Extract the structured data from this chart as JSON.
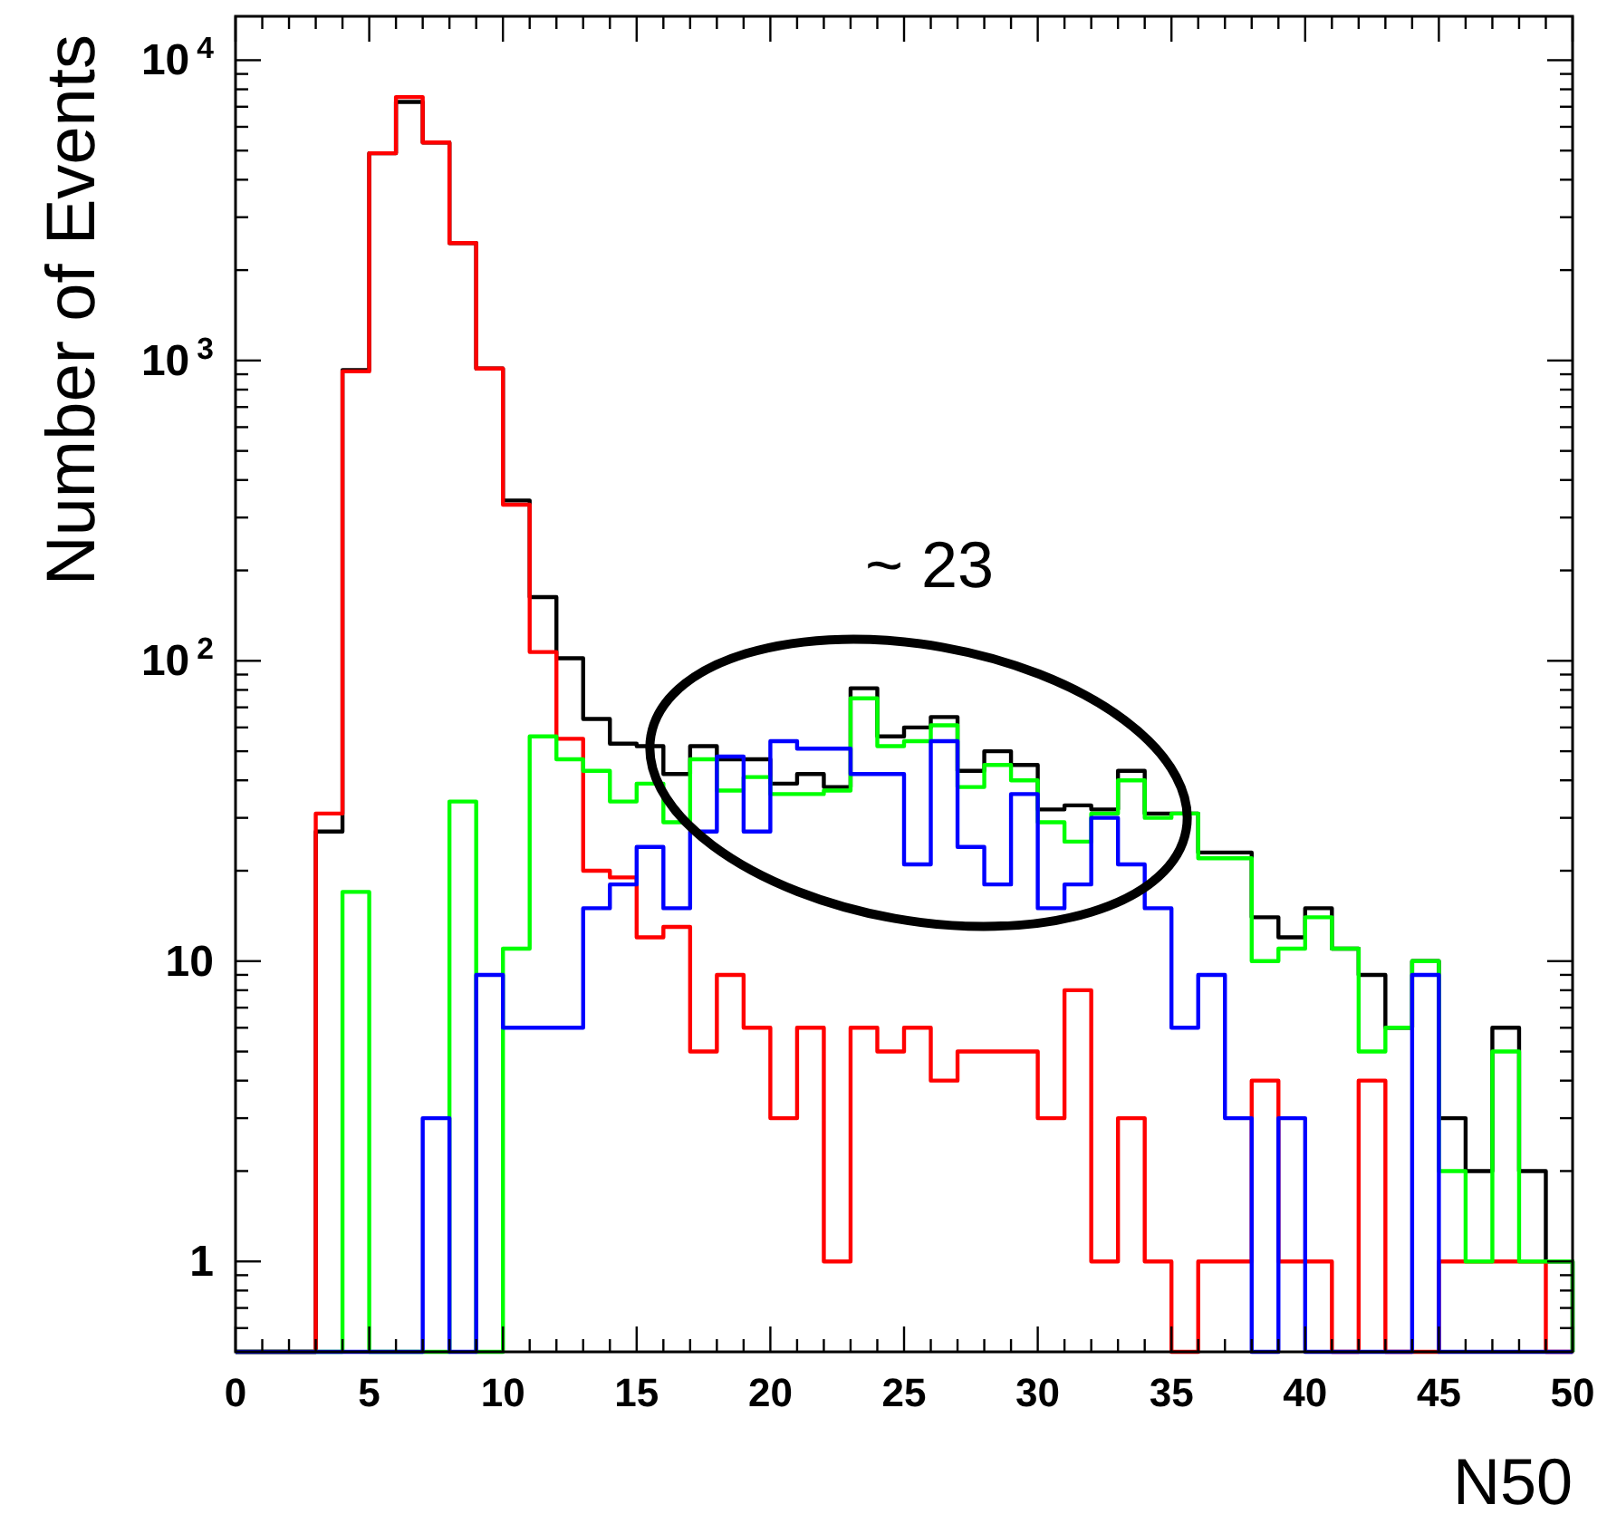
{
  "chart_data": {
    "type": "histogram",
    "xlabel": "N50",
    "ylabel": "Number of Events",
    "annotations": [
      "~ 23"
    ],
    "bins": [
      0,
      1,
      2,
      3,
      4,
      5,
      6,
      7,
      8,
      9,
      10,
      11,
      12,
      13,
      14,
      15,
      16,
      17,
      18,
      19,
      20,
      21,
      22,
      23,
      24,
      25,
      26,
      27,
      28,
      29,
      30,
      31,
      32,
      33,
      34,
      35,
      36,
      37,
      38,
      39,
      40,
      41,
      42,
      43,
      44,
      45,
      46,
      47,
      48,
      49,
      50
    ],
    "series": [
      {
        "color": "#000000",
        "values": [
          null,
          null,
          null,
          27,
          930,
          4900,
          7260,
          5320,
          2460,
          940,
          342,
          163,
          102,
          64,
          53,
          52,
          42,
          52,
          47,
          47,
          39,
          42,
          38,
          81,
          56,
          60,
          65,
          43,
          50,
          45,
          32,
          33,
          32,
          43,
          31,
          31,
          23,
          23,
          14,
          12,
          15,
          11,
          9,
          6,
          10,
          3,
          2,
          6,
          2,
          1
        ]
      },
      {
        "color": "#ff0000",
        "values": [
          null,
          null,
          null,
          31,
          920,
          4900,
          7540,
          5320,
          2460,
          940,
          331,
          107,
          55,
          20,
          19,
          12,
          13,
          5,
          9,
          6,
          3,
          6,
          1,
          6,
          5,
          6,
          4,
          5,
          5,
          5,
          3,
          8,
          1,
          3,
          1,
          null,
          1,
          1,
          4,
          1,
          1,
          null,
          4,
          null,
          null,
          1,
          1,
          1,
          1,
          null
        ]
      },
      {
        "color": "#00ff00",
        "values": [
          null,
          null,
          null,
          null,
          17,
          null,
          null,
          null,
          34,
          null,
          11,
          56,
          47,
          43,
          34,
          39,
          29,
          47,
          37,
          41,
          36,
          36,
          37,
          75,
          52,
          54,
          61,
          38,
          45,
          40,
          29,
          25,
          31,
          40,
          30,
          31,
          22,
          22,
          10,
          11,
          14,
          11,
          5,
          6,
          10,
          2,
          1,
          5,
          1,
          1
        ]
      },
      {
        "color": "#0000ff",
        "values": [
          null,
          null,
          null,
          null,
          null,
          null,
          null,
          3,
          null,
          9,
          6,
          6,
          6,
          15,
          18,
          24,
          15,
          27,
          48,
          27,
          54,
          51,
          51,
          42,
          42,
          21,
          54,
          24,
          18,
          36,
          15,
          18,
          30,
          21,
          15,
          6,
          9,
          3,
          null,
          3,
          null,
          null,
          null,
          null,
          9,
          null,
          null,
          null,
          null,
          null
        ]
      }
    ],
    "log": "y",
    "xlim": [
      0,
      50
    ],
    "ylim": [
      0.5,
      14000
    ],
    "xticks": [
      0,
      {
        "value": 1,
        "label": null
      },
      {
        "value": 2,
        "label": null
      },
      {
        "value": 3,
        "label": null
      },
      {
        "value": 4,
        "label": null
      },
      5,
      {
        "value": 6,
        "label": null
      },
      {
        "value": 7,
        "label": null
      },
      {
        "value": 8,
        "label": null
      },
      {
        "value": 9,
        "label": null
      },
      10,
      {
        "value": 11,
        "label": null
      },
      {
        "value": 12,
        "label": null
      },
      {
        "value": 13,
        "label": null
      },
      {
        "value": 14,
        "label": null
      },
      15,
      {
        "value": 16,
        "label": null
      },
      {
        "value": 17,
        "label": null
      },
      {
        "value": 18,
        "label": null
      },
      {
        "value": 19,
        "label": null
      },
      20,
      {
        "value": 21,
        "label": null
      },
      {
        "value": 22,
        "label": null
      },
      {
        "value": 23,
        "label": null
      },
      {
        "value": 24,
        "label": null
      },
      25,
      {
        "value": 26,
        "label": null
      },
      {
        "value": 27,
        "label": null
      },
      {
        "value": 28,
        "label": null
      },
      {
        "value": 29,
        "label": null
      },
      30,
      {
        "value": 31,
        "label": null
      },
      {
        "value": 32,
        "label": null
      },
      {
        "value": 33,
        "label": null
      },
      {
        "value": 34,
        "label": null
      },
      35,
      {
        "value": 36,
        "label": null
      },
      {
        "value": 37,
        "label": null
      },
      {
        "value": 38,
        "label": null
      },
      {
        "value": 39,
        "label": null
      },
      40,
      {
        "value": 41,
        "label": null
      },
      {
        "value": 42,
        "label": null
      },
      {
        "value": 43,
        "label": null
      },
      {
        "value": 44,
        "label": null
      },
      45,
      {
        "value": 46,
        "label": null
      },
      {
        "value": 47,
        "label": null
      },
      {
        "value": 48,
        "label": null
      },
      {
        "value": 49,
        "label": null
      },
      50
    ],
    "yticks": [
      {
        "value": 0.6,
        "label": null
      },
      {
        "value": 0.7,
        "label": null
      },
      {
        "value": 0.8,
        "label": null
      },
      {
        "value": 0.9,
        "label": null
      },
      1,
      {
        "value": 2,
        "label": null
      },
      {
        "value": 3,
        "label": null
      },
      {
        "value": 4,
        "label": null
      },
      {
        "value": 5,
        "label": null
      },
      {
        "value": 6,
        "label": null
      },
      {
        "value": 7,
        "label": null
      },
      {
        "value": 8,
        "label": null
      },
      {
        "value": 9,
        "label": null
      },
      10,
      {
        "value": 20,
        "label": null
      },
      {
        "value": 30,
        "label": null
      },
      {
        "value": 40,
        "label": null
      },
      {
        "value": 50,
        "label": null
      },
      {
        "value": 60,
        "label": null
      },
      {
        "value": 70,
        "label": null
      },
      {
        "value": 80,
        "label": null
      },
      {
        "value": 90,
        "label": null
      },
      {
        "value": 100,
        "label": "10$^{2}$"
      },
      {
        "value": 200,
        "label": null
      },
      {
        "value": 300,
        "label": null
      },
      {
        "value": 400,
        "label": null
      },
      {
        "value": 500,
        "label": null
      },
      {
        "value": 600,
        "label": null
      },
      {
        "value": 700,
        "label": null
      },
      {
        "value": 800,
        "label": null
      },
      {
        "value": 900,
        "label": null
      },
      {
        "value": 1000,
        "label": "10$^{3}$"
      },
      {
        "value": 2000,
        "label": null
      },
      {
        "value": 3000,
        "label": null
      },
      {
        "value": 4000,
        "label": null
      },
      {
        "value": 5000,
        "label": null
      },
      {
        "value": 6000,
        "label": null
      },
      {
        "value": 7000,
        "label": null
      },
      {
        "value": 8000,
        "label": null
      },
      {
        "value": 9000,
        "label": null
      },
      {
        "value": 10000,
        "label": "10$^{4}$"
      }
    ]
  }
}
